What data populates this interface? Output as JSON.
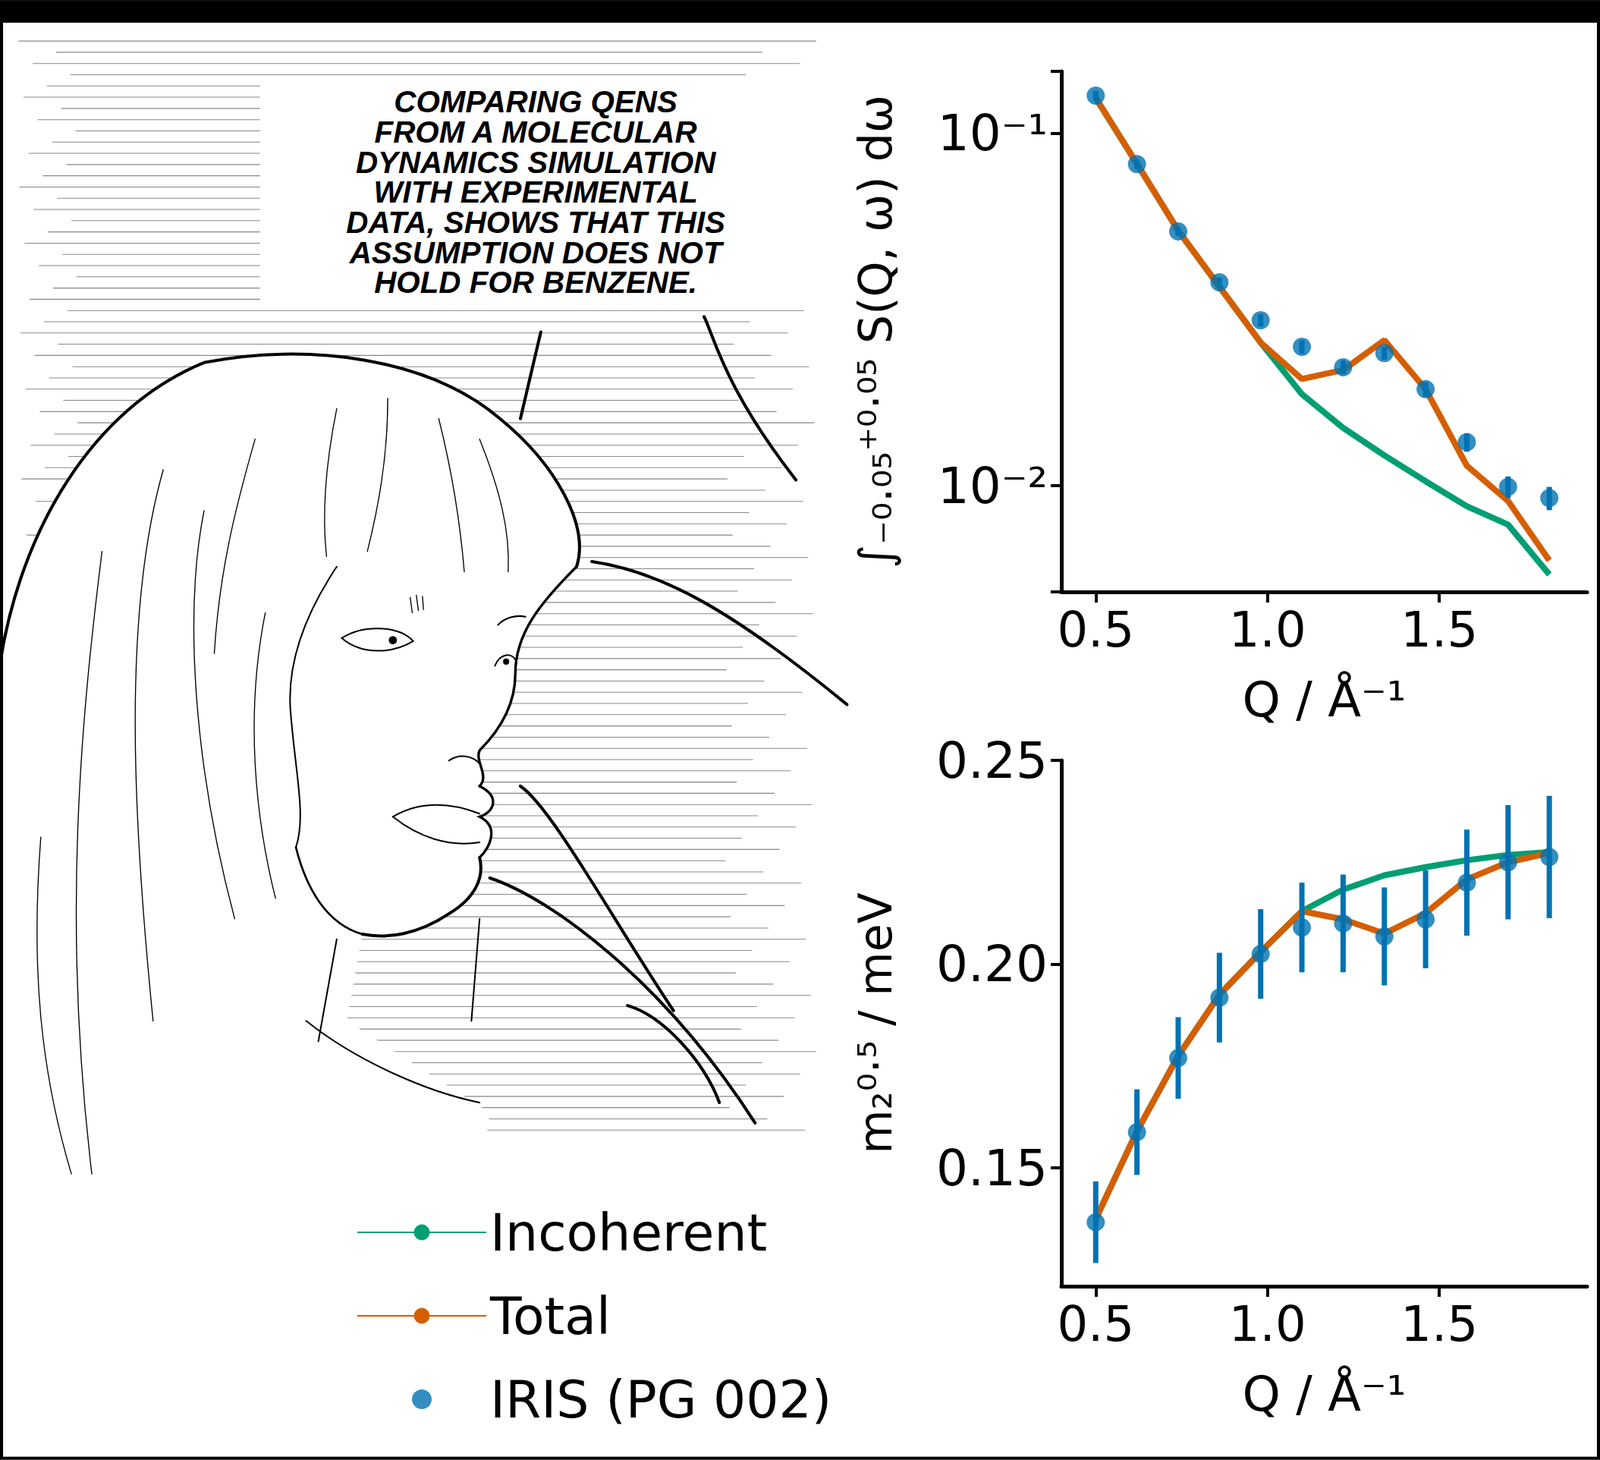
{
  "speech_bubble": [
    "COMPARING QENS",
    "FROM A MOLECULAR",
    "DYNAMICS SIMULATION",
    "WITH EXPERIMENTAL",
    "DATA, SHOWS THAT THIS",
    "ASSUMPTION DOES NOT",
    "HOLD FOR BENZENE."
  ],
  "chart_data": [
    {
      "type": "line",
      "xlabel": "Q / Å⁻¹",
      "ylabel": "∫₋₀.₀₅⁺⁰·⁰⁵ S(Q, ω) dω",
      "log": "y",
      "xlim": [
        0.4,
        1.93
      ],
      "ylim": [
        0.005,
        0.15
      ],
      "xticks": [
        0.5,
        {
          "value": 1,
          "label": "1.0"
        },
        1.5
      ],
      "yticks": [
        {
          "value": 0.01,
          "label": "10⁻²"
        },
        {
          "value": 0.1,
          "label": "10⁻¹"
        }
      ],
      "x": [
        0.5,
        0.62,
        0.74,
        0.86,
        0.98,
        1.1,
        1.22,
        1.34,
        1.46,
        1.58,
        1.7,
        1.82
      ],
      "series": [
        {
          "name": "Incoherent",
          "color": "#009e73",
          "values": [
            0.126,
            0.082,
            0.053,
            0.0367,
            0.0255,
            0.0182,
            0.0146,
            0.0122,
            0.0103,
            0.00875,
            0.00776,
            0.0056
          ]
        },
        {
          "name": "Total",
          "color": "#d55e00",
          "values": [
            0.126,
            0.082,
            0.053,
            0.0367,
            0.0255,
            0.0201,
            0.0213,
            0.0259,
            0.0188,
            0.0114,
            0.00905,
            0.00614
          ]
        },
        {
          "name": "IRIS (PG 002)",
          "type": "scatter",
          "marker": "circle",
          "color": "#0072b2",
          "values": [
            0.128,
            0.0818,
            0.0527,
            0.0378,
            0.0295,
            0.0248,
            0.0217,
            0.0238,
            0.0188,
            0.0133,
            0.00993,
            0.00923
          ],
          "errors": [
            0.004,
            0.0025,
            0.0015,
            0.0012,
            0.0012,
            0.0011,
            0.001,
            0.001,
            0.0009,
            0.0008,
            0.0007,
            0.0007
          ]
        }
      ]
    },
    {
      "type": "line",
      "xlabel": "Q / Å⁻¹",
      "ylabel": "m₂⁰·⁵ / meV",
      "xlim": [
        0.4,
        1.93
      ],
      "ylim": [
        0.121,
        0.25
      ],
      "xticks": [
        0.5,
        {
          "value": 1,
          "label": "1.0"
        },
        1.5
      ],
      "yticks": [
        0.15,
        {
          "value": 0.2,
          "label": "0.20"
        },
        0.25
      ],
      "legend": "bottom-left",
      "x": [
        0.5,
        0.62,
        0.74,
        0.86,
        0.98,
        1.1,
        1.22,
        1.34,
        1.46,
        1.58,
        1.7,
        1.82
      ],
      "series": [
        {
          "name": "Incoherent",
          "color": "#009e73",
          "values": [
            0.1375,
            0.159,
            0.1775,
            0.1925,
            0.203,
            0.213,
            0.2183,
            0.2218,
            0.2238,
            0.2255,
            0.2268,
            0.2275
          ]
        },
        {
          "name": "Total",
          "color": "#d55e00",
          "values": [
            0.1375,
            0.159,
            0.1775,
            0.1925,
            0.203,
            0.213,
            0.211,
            0.2075,
            0.2125,
            0.2208,
            0.225,
            0.2273
          ]
        },
        {
          "name": "IRIS (PG 002)",
          "type": "scatter",
          "marker": "circle",
          "color": "#0072b2",
          "values": [
            0.1367,
            0.1588,
            0.177,
            0.1918,
            0.2025,
            0.209,
            0.21,
            0.2068,
            0.211,
            0.22,
            0.225,
            0.2263
          ],
          "errors": [
            0.01,
            0.0105,
            0.01,
            0.011,
            0.011,
            0.011,
            0.012,
            0.012,
            0.012,
            0.013,
            0.014,
            0.015
          ]
        }
      ]
    }
  ]
}
